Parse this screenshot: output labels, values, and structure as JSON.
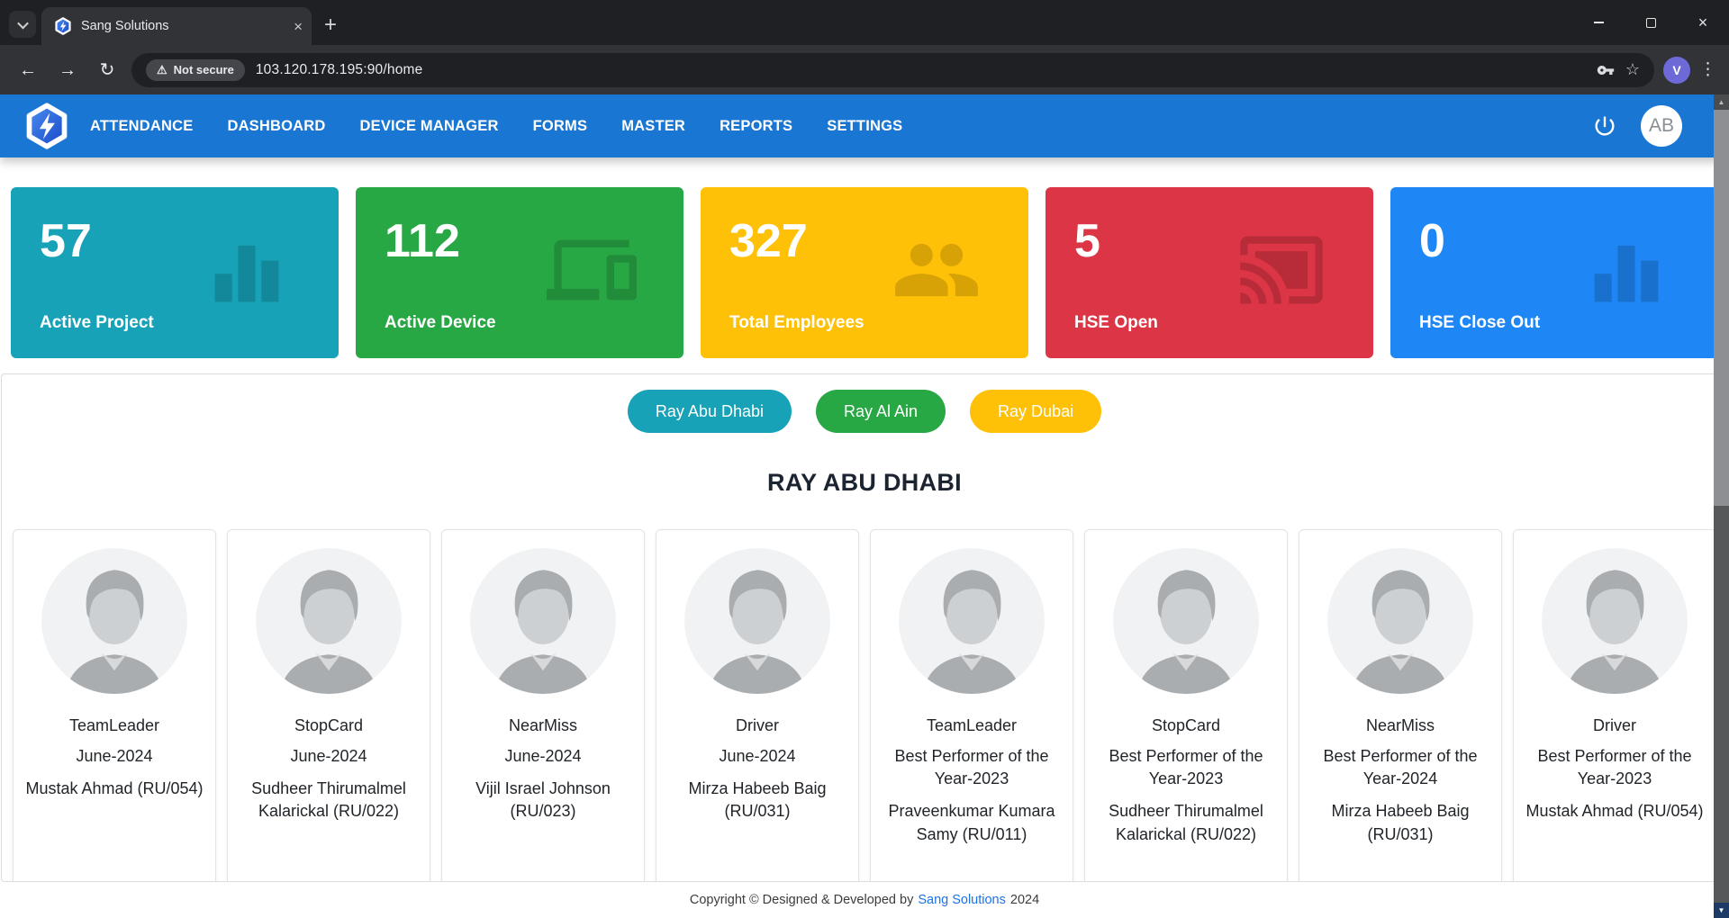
{
  "browser": {
    "tab_title": "Sang Solutions",
    "security_badge": "Not secure",
    "url": "103.120.178.195:90/home",
    "profile_initial": "V",
    "glyphs": {
      "back": "←",
      "forward": "→",
      "reload": "↻",
      "star": "☆",
      "menu_dots": "⋮",
      "close": "×",
      "tab_close": "×",
      "new_tab": "+",
      "warning": "⚠",
      "scroll_up": "▲",
      "scroll_down": "▼"
    }
  },
  "navbar": {
    "menu": [
      {
        "label": "ATTENDANCE"
      },
      {
        "label": "DASHBOARD"
      },
      {
        "label": "DEVICE MANAGER"
      },
      {
        "label": "FORMS"
      },
      {
        "label": "MASTER"
      },
      {
        "label": "REPORTS"
      },
      {
        "label": "SETTINGS"
      }
    ],
    "avatar_initials": "AB"
  },
  "stat_cards": [
    {
      "value": "57",
      "label": "Active Project",
      "color": "#17a2b8",
      "icon": "bar-chart"
    },
    {
      "value": "112",
      "label": "Active Device",
      "color": "#28a745",
      "icon": "devices"
    },
    {
      "value": "327",
      "label": "Total Employees",
      "color": "#ffc107",
      "icon": "people"
    },
    {
      "value": "5",
      "label": "HSE Open",
      "color": "#dc3545",
      "icon": "cast"
    },
    {
      "value": "0",
      "label": "HSE Close Out",
      "color": "#1e87f5",
      "icon": "bar-chart"
    }
  ],
  "location_buttons": [
    {
      "label": "Ray Abu Dhabi",
      "color": "#17a2b8"
    },
    {
      "label": "Ray Al Ain",
      "color": "#28a745"
    },
    {
      "label": "Ray Dubai",
      "color": "#ffc107"
    }
  ],
  "section_title": "RAY ABU DHABI",
  "employees": [
    {
      "award": "TeamLeader",
      "period": "June-2024",
      "name": "Mustak Ahmad (RU/054)"
    },
    {
      "award": "StopCard",
      "period": "June-2024",
      "name": "Sudheer Thirumalmel Kalarickal (RU/022)"
    },
    {
      "award": "NearMiss",
      "period": "June-2024",
      "name": "Vijil Israel Johnson (RU/023)"
    },
    {
      "award": "Driver",
      "period": "June-2024",
      "name": "Mirza Habeeb Baig (RU/031)"
    },
    {
      "award": "TeamLeader",
      "period": "Best Performer of the Year-2023",
      "name": "Praveenkumar Kumara Samy (RU/011)"
    },
    {
      "award": "StopCard",
      "period": "Best Performer of the Year-2023",
      "name": "Sudheer Thirumalmel Kalarickal (RU/022)"
    },
    {
      "award": "NearMiss",
      "period": "Best Performer of the Year-2024",
      "name": "Mirza Habeeb Baig (RU/031)"
    },
    {
      "award": "Driver",
      "period": "Best Performer of the Year-2023",
      "name": "Mustak Ahmad (RU/054)"
    }
  ],
  "footer": {
    "prefix": "Copyright © Designed & Developed by",
    "link_text": "Sang Solutions",
    "suffix": "2024"
  }
}
